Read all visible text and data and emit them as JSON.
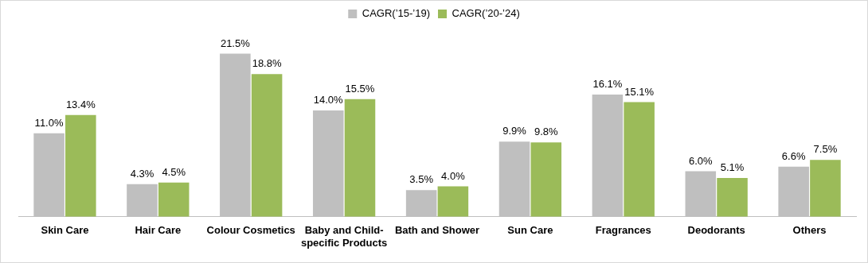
{
  "chart_data": {
    "type": "bar",
    "categories": [
      "Skin Care",
      "Hair Care",
      "Colour Cosmetics",
      "Baby and Child-specific Products",
      "Bath and Shower",
      "Sun Care",
      "Fragrances",
      "Deodorants",
      "Others"
    ],
    "series": [
      {
        "name": "CAGR(’15-’19)",
        "color": "#bfbfbf",
        "values": [
          11.0,
          4.3,
          21.5,
          14.0,
          3.5,
          9.9,
          16.1,
          6.0,
          6.6
        ],
        "value_labels": [
          "11.0%",
          "4.3%",
          "21.5%",
          "14.0%",
          "3.5%",
          "9.9%",
          "16.1%",
          "6.0%",
          "6.6%"
        ]
      },
      {
        "name": "CAGR(’20-’24)",
        "color": "#9bbb59",
        "values": [
          13.4,
          4.5,
          18.8,
          15.5,
          4.0,
          9.8,
          15.1,
          5.1,
          7.5
        ],
        "value_labels": [
          "13.4%",
          "4.5%",
          "18.8%",
          "15.5%",
          "4.0%",
          "9.8%",
          "15.1%",
          "5.1%",
          "7.5%"
        ]
      }
    ],
    "legend": "top",
    "grid": false
  }
}
